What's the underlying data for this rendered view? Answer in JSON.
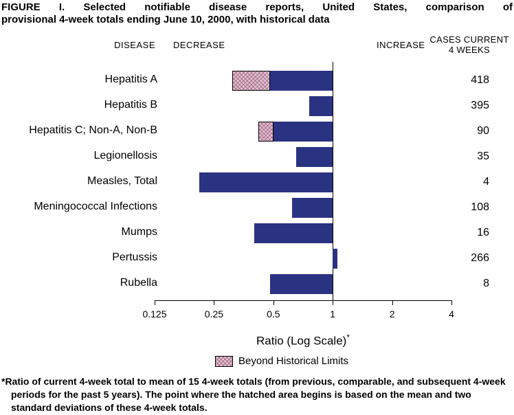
{
  "title": {
    "line1": "FIGURE I. Selected notifiable disease reports, United States, comparison of",
    "line2": "provisional 4-week totals ending June 10, 2000, with historical data"
  },
  "headers": {
    "disease": "DISEASE",
    "decrease": "DECREASE",
    "increase": "INCREASE",
    "cases_line1": "CASES CURRENT",
    "cases_line2": "4 WEEKS"
  },
  "chart_data": {
    "type": "bar",
    "orientation": "horizontal",
    "scale": "log",
    "baseline_ratio": 1,
    "xlim": [
      0.125,
      4
    ],
    "axis_ticks": [
      0.125,
      0.25,
      0.5,
      1,
      2,
      4
    ],
    "xlabel": "Ratio (Log Scale)",
    "xlabel_footnote_marker": "*",
    "legend": {
      "label": "Beyond Historical Limits"
    },
    "bar_color": "#2a3282",
    "hatch_bg_color": "#d8c6d2",
    "hatch_line_color": "#a5466e",
    "rows": [
      {
        "disease": "Hepatitis A",
        "ratio": 0.31,
        "cases_current_4_weeks": 418,
        "beyond_historical_limits": true,
        "historical_limit_ratio": 0.48
      },
      {
        "disease": "Hepatitis B",
        "ratio": 0.76,
        "cases_current_4_weeks": 395,
        "beyond_historical_limits": false
      },
      {
        "disease": "Hepatitis C; Non-A, Non-B",
        "ratio": 0.42,
        "cases_current_4_weeks": 90,
        "beyond_historical_limits": true,
        "historical_limit_ratio": 0.5
      },
      {
        "disease": "Legionellosis",
        "ratio": 0.65,
        "cases_current_4_weeks": 35,
        "beyond_historical_limits": false
      },
      {
        "disease": "Measles, Total",
        "ratio": 0.21,
        "cases_current_4_weeks": 4,
        "beyond_historical_limits": false
      },
      {
        "disease": "Meningococcal Infections",
        "ratio": 0.62,
        "cases_current_4_weeks": 108,
        "beyond_historical_limits": false
      },
      {
        "disease": "Mumps",
        "ratio": 0.4,
        "cases_current_4_weeks": 16,
        "beyond_historical_limits": false
      },
      {
        "disease": "Pertussis",
        "ratio": 1.06,
        "cases_current_4_weeks": 266,
        "beyond_historical_limits": false
      },
      {
        "disease": "Rubella",
        "ratio": 0.48,
        "cases_current_4_weeks": 8,
        "beyond_historical_limits": false
      }
    ]
  },
  "footnote": "*Ratio of current 4-week total to mean of 15 4-week totals (from previous, comparable, and subsequent 4-week periods for the past 5 years). The point where the hatched area begins is based on the mean and two standard deviations of these 4-week totals."
}
